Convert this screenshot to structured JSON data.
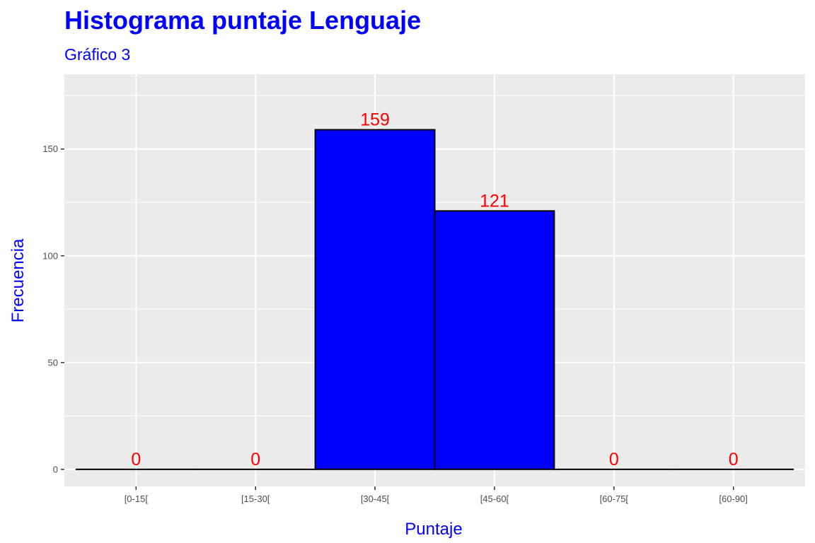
{
  "chart_data": {
    "type": "bar",
    "title": "Histograma puntaje Lenguaje",
    "subtitle": "Gráfico 3",
    "xlabel": "Puntaje",
    "ylabel": "Frecuencia",
    "categories": [
      "[0-15[",
      "[15-30[",
      "[30-45[",
      "[45-60[",
      "[60-75[",
      "[60-90]"
    ],
    "values": [
      0,
      0,
      159,
      121,
      0,
      0
    ],
    "data_labels": [
      "0",
      "0",
      "159",
      "121",
      "0",
      "0"
    ],
    "yticks": [
      0,
      50,
      100,
      150
    ],
    "ylim": [
      -8,
      185
    ],
    "grid": true,
    "legend": "none",
    "colors": {
      "bar_fill": "#0000ff",
      "bar_stroke": "#000000",
      "panel_bg": "#ebebeb",
      "grid": "#ffffff",
      "data_label": "#ff0000",
      "title": "#0000ff",
      "tick_label": "#4d4d4d"
    }
  }
}
